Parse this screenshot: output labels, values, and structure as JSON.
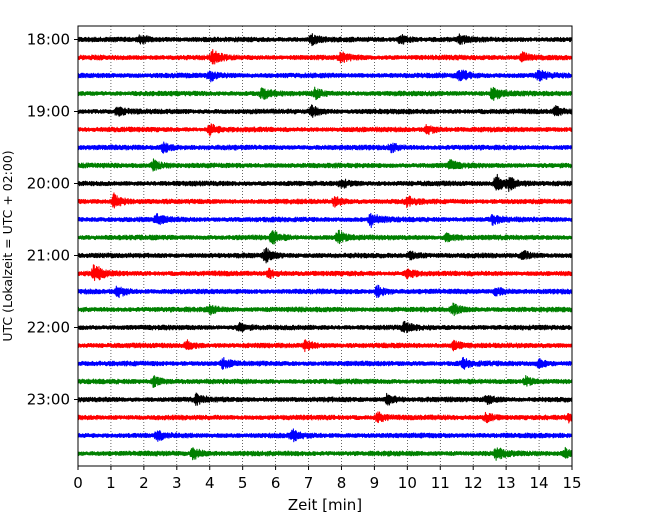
{
  "chart_data": {
    "type": "line",
    "title": "",
    "xlabel": "Zeit  [min]",
    "ylabel": "UTC (Lokalzeit = UTC + 02:00)",
    "xlim": [
      0,
      15
    ],
    "x_ticks": [
      "0",
      "1",
      "2",
      "3",
      "4",
      "5",
      "6",
      "7",
      "8",
      "9",
      "10",
      "11",
      "12",
      "13",
      "14",
      "15"
    ],
    "y_ticks": [
      {
        "label": "18:00",
        "row": 0
      },
      {
        "label": "19:00",
        "row": 4
      },
      {
        "label": "20:00",
        "row": 8
      },
      {
        "label": "21:00",
        "row": 12
      },
      {
        "label": "22:00",
        "row": 16
      },
      {
        "label": "23:00",
        "row": 20
      }
    ],
    "row_minutes": 15,
    "row_count": 24,
    "row_colors": [
      "#000000",
      "#ff0000",
      "#0000ff",
      "#008000"
    ],
    "grid": {
      "x": true,
      "y": false,
      "style": "dotted"
    },
    "events": [
      {
        "row": 0,
        "x": 1.9,
        "amp": 1.2
      },
      {
        "row": 0,
        "x": 7.1,
        "amp": 1.3
      },
      {
        "row": 0,
        "x": 9.8,
        "amp": 1.3
      },
      {
        "row": 0,
        "x": 11.6,
        "amp": 1.2
      },
      {
        "row": 1,
        "x": 4.1,
        "amp": 1.8
      },
      {
        "row": 1,
        "x": 8.0,
        "amp": 1.3
      },
      {
        "row": 1,
        "x": 13.5,
        "amp": 1.3
      },
      {
        "row": 2,
        "x": 4.0,
        "amp": 1.5
      },
      {
        "row": 2,
        "x": 11.6,
        "amp": 1.8
      },
      {
        "row": 2,
        "x": 14.0,
        "amp": 1.4
      },
      {
        "row": 3,
        "x": 5.6,
        "amp": 1.7
      },
      {
        "row": 3,
        "x": 7.2,
        "amp": 1.4
      },
      {
        "row": 3,
        "x": 12.6,
        "amp": 2.2
      },
      {
        "row": 4,
        "x": 1.2,
        "amp": 1.3
      },
      {
        "row": 4,
        "x": 7.1,
        "amp": 1.5
      },
      {
        "row": 4,
        "x": 14.5,
        "amp": 1.3
      },
      {
        "row": 5,
        "x": 4.0,
        "amp": 1.6
      },
      {
        "row": 5,
        "x": 10.6,
        "amp": 1.4
      },
      {
        "row": 6,
        "x": 2.6,
        "amp": 1.3
      },
      {
        "row": 6,
        "x": 9.5,
        "amp": 1.3
      },
      {
        "row": 7,
        "x": 2.3,
        "amp": 1.5
      },
      {
        "row": 7,
        "x": 11.3,
        "amp": 1.3
      },
      {
        "row": 8,
        "x": 8.0,
        "amp": 1.2
      },
      {
        "row": 8,
        "x": 12.7,
        "amp": 2.6
      },
      {
        "row": 8,
        "x": 13.1,
        "amp": 1.6
      },
      {
        "row": 9,
        "x": 1.1,
        "amp": 2.2
      },
      {
        "row": 9,
        "x": 7.8,
        "amp": 1.3
      },
      {
        "row": 9,
        "x": 10.0,
        "amp": 1.3
      },
      {
        "row": 10,
        "x": 2.4,
        "amp": 1.3
      },
      {
        "row": 10,
        "x": 8.9,
        "amp": 2.0
      },
      {
        "row": 10,
        "x": 12.6,
        "amp": 1.2
      },
      {
        "row": 11,
        "x": 5.9,
        "amp": 1.8
      },
      {
        "row": 11,
        "x": 7.9,
        "amp": 1.9
      },
      {
        "row": 11,
        "x": 11.2,
        "amp": 1.3
      },
      {
        "row": 12,
        "x": 5.7,
        "amp": 1.9
      },
      {
        "row": 12,
        "x": 10.1,
        "amp": 1.3
      },
      {
        "row": 12,
        "x": 13.5,
        "amp": 1.3
      },
      {
        "row": 13,
        "x": 0.5,
        "amp": 2.6
      },
      {
        "row": 13,
        "x": 5.8,
        "amp": 1.3
      },
      {
        "row": 13,
        "x": 10.0,
        "amp": 1.6
      },
      {
        "row": 14,
        "x": 1.2,
        "amp": 1.7
      },
      {
        "row": 14,
        "x": 9.1,
        "amp": 1.6
      },
      {
        "row": 14,
        "x": 12.7,
        "amp": 1.2
      },
      {
        "row": 15,
        "x": 4.0,
        "amp": 1.2
      },
      {
        "row": 15,
        "x": 11.4,
        "amp": 1.4
      },
      {
        "row": 16,
        "x": 4.9,
        "amp": 1.2
      },
      {
        "row": 16,
        "x": 9.9,
        "amp": 1.3
      },
      {
        "row": 17,
        "x": 3.3,
        "amp": 1.3
      },
      {
        "row": 17,
        "x": 6.9,
        "amp": 1.5
      },
      {
        "row": 17,
        "x": 11.4,
        "amp": 1.3
      },
      {
        "row": 18,
        "x": 4.4,
        "amp": 1.3
      },
      {
        "row": 18,
        "x": 11.7,
        "amp": 1.3
      },
      {
        "row": 18,
        "x": 14.0,
        "amp": 1.2
      },
      {
        "row": 19,
        "x": 2.3,
        "amp": 1.4
      },
      {
        "row": 19,
        "x": 13.6,
        "amp": 1.3
      },
      {
        "row": 20,
        "x": 3.6,
        "amp": 1.3
      },
      {
        "row": 20,
        "x": 9.4,
        "amp": 1.5
      },
      {
        "row": 20,
        "x": 12.4,
        "amp": 1.2
      },
      {
        "row": 21,
        "x": 9.1,
        "amp": 1.5
      },
      {
        "row": 21,
        "x": 12.4,
        "amp": 1.3
      },
      {
        "row": 21,
        "x": 14.9,
        "amp": 1.4
      },
      {
        "row": 22,
        "x": 2.4,
        "amp": 1.3
      },
      {
        "row": 22,
        "x": 6.5,
        "amp": 1.6
      },
      {
        "row": 23,
        "x": 3.5,
        "amp": 1.6
      },
      {
        "row": 23,
        "x": 12.7,
        "amp": 1.7
      },
      {
        "row": 23,
        "x": 14.8,
        "amp": 1.3
      }
    ]
  }
}
